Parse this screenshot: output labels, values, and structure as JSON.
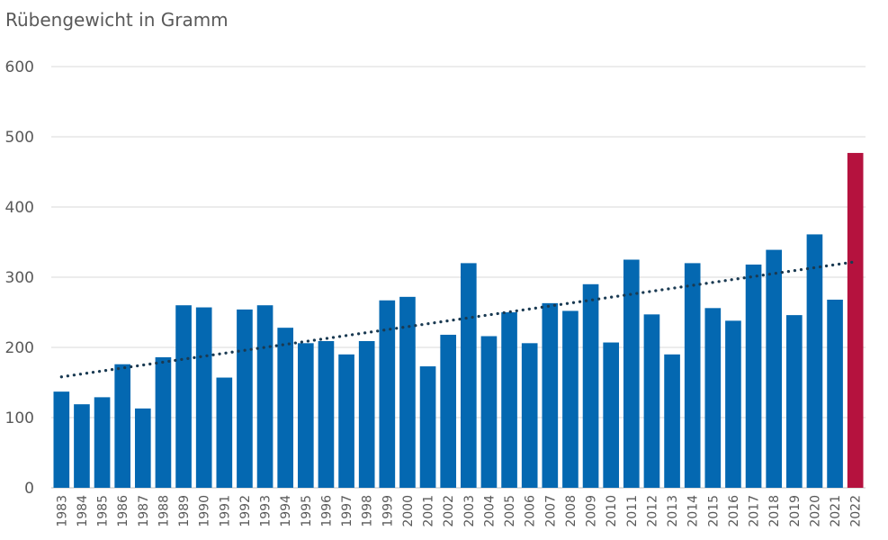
{
  "chart_data": {
    "type": "bar",
    "title": "Rübengewicht in Gramm",
    "xlabel": "",
    "ylabel": "",
    "ylim": [
      0,
      600
    ],
    "yticks": [
      "0",
      "100",
      "200",
      "300",
      "400",
      "500",
      "600"
    ],
    "grid": true,
    "categories": [
      "1983",
      "1984",
      "1985",
      "1986",
      "1987",
      "1988",
      "1989",
      "1990",
      "1991",
      "1992",
      "1993",
      "1994",
      "1995",
      "1996",
      "1997",
      "1998",
      "1999",
      "2000",
      "2001",
      "2002",
      "2003",
      "2004",
      "2005",
      "2006",
      "2007",
      "2008",
      "2009",
      "2010",
      "2011",
      "2012",
      "2013",
      "2014",
      "2015",
      "2016",
      "2017",
      "2018",
      "2019",
      "2020",
      "2021",
      "2022"
    ],
    "values": [
      137,
      119,
      129,
      176,
      113,
      186,
      260,
      257,
      157,
      254,
      260,
      228,
      206,
      209,
      190,
      209,
      267,
      272,
      173,
      218,
      320,
      216,
      250,
      206,
      263,
      252,
      290,
      207,
      325,
      247,
      190,
      320,
      256,
      238,
      318,
      339,
      246,
      361,
      268,
      477
    ],
    "trendline": {
      "style": "dotted",
      "start": 158,
      "end": 322
    },
    "colors": {
      "bar": "#0468b1",
      "highlight": "#b5123e",
      "trend": "#1a3a52",
      "grid": "#d9d9d9"
    },
    "highlight_index": 39
  }
}
